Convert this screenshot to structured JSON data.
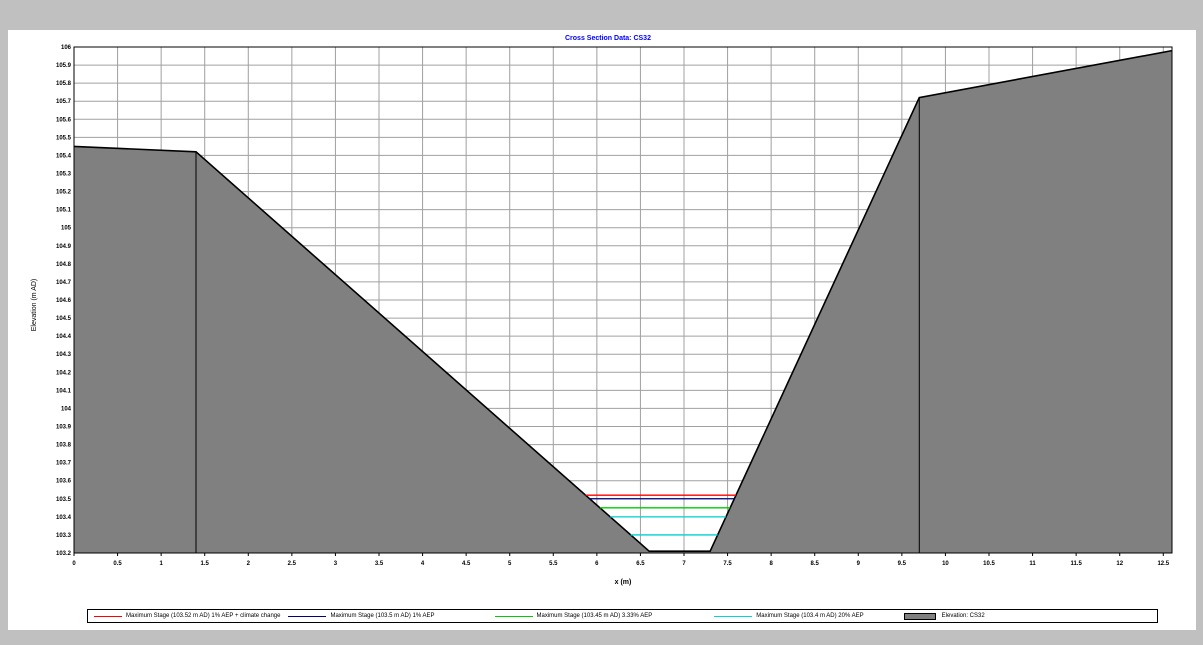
{
  "chart_data": {
    "type": "area",
    "title": "Cross Section Data: CS32",
    "xlabel": "x (m)",
    "ylabel": "Elevation (m AD)",
    "xlim": [
      0,
      12.6
    ],
    "ylim": [
      103.2,
      106
    ],
    "x_ticks": [
      {
        "v": 0,
        "label": "0"
      },
      {
        "v": 0.5,
        "label": "0.5"
      },
      {
        "v": 1,
        "label": "1"
      },
      {
        "v": 1.5,
        "label": "1.5"
      },
      {
        "v": 2,
        "label": "2"
      },
      {
        "v": 2.5,
        "label": "2.5"
      },
      {
        "v": 3,
        "label": "3"
      },
      {
        "v": 3.5,
        "label": "3.5"
      },
      {
        "v": 4,
        "label": "4"
      },
      {
        "v": 4.5,
        "label": "4.5"
      },
      {
        "v": 5,
        "label": "5"
      },
      {
        "v": 5.5,
        "label": "5.5"
      },
      {
        "v": 6,
        "label": "6"
      },
      {
        "v": 6.5,
        "label": "6.5"
      },
      {
        "v": 7,
        "label": "7"
      },
      {
        "v": 7.5,
        "label": "7.5"
      },
      {
        "v": 8,
        "label": "8"
      },
      {
        "v": 8.5,
        "label": "8.5"
      },
      {
        "v": 9,
        "label": "9"
      },
      {
        "v": 9.5,
        "label": "9.5"
      },
      {
        "v": 10,
        "label": "10"
      },
      {
        "v": 10.5,
        "label": "10.5"
      },
      {
        "v": 11,
        "label": "11"
      },
      {
        "v": 11.5,
        "label": "11.5"
      },
      {
        "v": 12,
        "label": "12"
      },
      {
        "v": 12.5,
        "label": "12.5"
      }
    ],
    "y_ticks": [
      {
        "v": 103.2,
        "label": "103.2"
      },
      {
        "v": 103.3,
        "label": "103.3"
      },
      {
        "v": 103.4,
        "label": "103.4"
      },
      {
        "v": 103.5,
        "label": "103.5"
      },
      {
        "v": 103.6,
        "label": "103.6"
      },
      {
        "v": 103.7,
        "label": "103.7"
      },
      {
        "v": 103.8,
        "label": "103.8"
      },
      {
        "v": 103.9,
        "label": "103.9"
      },
      {
        "v": 104,
        "label": "104"
      },
      {
        "v": 104.1,
        "label": "104.1"
      },
      {
        "v": 104.2,
        "label": "104.2"
      },
      {
        "v": 104.3,
        "label": "104.3"
      },
      {
        "v": 104.4,
        "label": "104.4"
      },
      {
        "v": 104.5,
        "label": "104.5"
      },
      {
        "v": 104.6,
        "label": "104.6"
      },
      {
        "v": 104.7,
        "label": "104.7"
      },
      {
        "v": 104.8,
        "label": "104.8"
      },
      {
        "v": 104.9,
        "label": "104.9"
      },
      {
        "v": 105,
        "label": "105"
      },
      {
        "v": 105.1,
        "label": "105.1"
      },
      {
        "v": 105.2,
        "label": "105.2"
      },
      {
        "v": 105.3,
        "label": "105.3"
      },
      {
        "v": 105.4,
        "label": "105.4"
      },
      {
        "v": 105.5,
        "label": "105.5"
      },
      {
        "v": 105.6,
        "label": "105.6"
      },
      {
        "v": 105.7,
        "label": "105.7"
      },
      {
        "v": 105.8,
        "label": "105.8"
      },
      {
        "v": 105.9,
        "label": "105.9"
      },
      {
        "v": 106,
        "label": "106"
      }
    ],
    "grid": true,
    "legend_position": "bottom",
    "profile": {
      "name": "Elevation: CS32",
      "color": "#808080",
      "points": [
        {
          "x": 0,
          "y": 105.45
        },
        {
          "x": 1.4,
          "y": 105.42
        },
        {
          "x": 6.6,
          "y": 103.21
        },
        {
          "x": 7.3,
          "y": 103.21
        },
        {
          "x": 9.7,
          "y": 105.72
        },
        {
          "x": 12.6,
          "y": 105.98
        }
      ],
      "dividers_x": [
        1.4,
        9.7
      ]
    },
    "series": [
      {
        "name": "Maximum Stage (103.52 m AD) 1% AEP + climate change",
        "y": 103.52,
        "color": "#ff0000"
      },
      {
        "name": "Maximum Stage (103.5 m AD) 1% AEP",
        "y": 103.5,
        "color": "#000080"
      },
      {
        "name": "Maximum Stage (103.45 m AD) 3.33% AEP",
        "y": 103.45,
        "color": "#00cc00"
      },
      {
        "name": "Maximum Stage (103.4 m AD) 20% AEP",
        "y": 103.4,
        "color": "#00d6d6"
      }
    ],
    "extra_lines": [
      {
        "y": 103.3,
        "color": "#00d6d6"
      }
    ]
  }
}
